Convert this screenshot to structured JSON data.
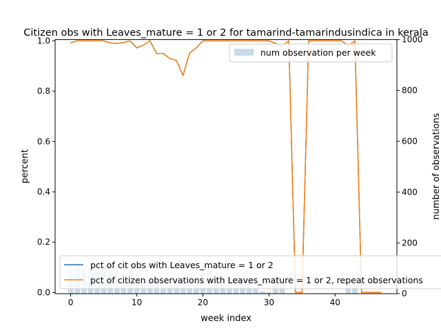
{
  "chart_data": {
    "type": "line",
    "title": "Citizen obs with Leaves_mature = 1 or 2 for tamarind-tamarindusindica in kerala",
    "xlabel": "week index",
    "ylabel": "percent",
    "ylabel_right": "number of observations",
    "xlim": [
      -2.35,
      49.35
    ],
    "ylim": [
      -0.005,
      1.005
    ],
    "ylim_right": [
      0,
      1000
    ],
    "x_ticks": [
      0,
      10,
      20,
      30,
      40
    ],
    "x_tick_labels": [
      "0",
      "10",
      "20",
      "30",
      "40"
    ],
    "y_ticks": [
      0.0,
      0.2,
      0.4,
      0.6,
      0.8,
      1.0
    ],
    "y_tick_labels": [
      "0.0",
      "0.2",
      "0.4",
      "0.6",
      "0.8",
      "1.0"
    ],
    "y_right_ticks": [
      0,
      200,
      400,
      600,
      800,
      1000
    ],
    "y_right_tick_labels": [
      "0",
      "200",
      "400",
      "600",
      "800",
      "1000"
    ],
    "grid": false,
    "x": [
      0,
      1,
      2,
      3,
      4,
      5,
      6,
      7,
      8,
      9,
      10,
      11,
      12,
      13,
      14,
      15,
      16,
      17,
      18,
      19,
      20,
      21,
      22,
      23,
      24,
      25,
      26,
      27,
      28,
      29,
      30,
      31,
      32,
      33,
      34,
      35,
      36,
      37,
      38,
      39,
      40,
      41,
      42,
      43,
      44,
      45,
      46,
      47
    ],
    "series": [
      {
        "name": "pct of cit obs with Leaves_mature = 1 or 2",
        "color": "#1f77b4",
        "axis": "left",
        "values": [
          0.992,
          1.0,
          1.0,
          1.0,
          1.0,
          1.0,
          0.992,
          0.99,
          0.993,
          1.0,
          0.972,
          0.983,
          1.0,
          0.95,
          0.95,
          0.93,
          0.922,
          0.862,
          0.952,
          0.972,
          1.0,
          1.0,
          1.0,
          1.0,
          1.0,
          1.0,
          1.0,
          1.0,
          1.0,
          1.0,
          1.0,
          0.99,
          0.98,
          1.0,
          0.0,
          0.0,
          1.0,
          1.0,
          1.0,
          1.0,
          1.0,
          1.0,
          0.98,
          1.0,
          0.0,
          0.0,
          0.0,
          0.0
        ]
      },
      {
        "name": "pct of citizen observations with Leaves_mature = 1 or 2, repeat observations",
        "color": "#ff7f0e",
        "axis": "left",
        "values": [
          0.992,
          1.0,
          1.0,
          1.0,
          1.0,
          1.0,
          0.992,
          0.99,
          0.993,
          1.0,
          0.972,
          0.983,
          1.0,
          0.95,
          0.95,
          0.93,
          0.922,
          0.862,
          0.952,
          0.972,
          1.0,
          1.0,
          1.0,
          1.0,
          1.0,
          1.0,
          1.0,
          1.0,
          1.0,
          1.0,
          1.0,
          0.99,
          0.98,
          1.0,
          0.0,
          0.0,
          1.0,
          1.0,
          1.0,
          1.0,
          1.0,
          1.0,
          0.98,
          1.0,
          0.0,
          0.0,
          0.0,
          0.0
        ]
      },
      {
        "name": "num observation per week",
        "type": "bar",
        "color": "#c6dbeb",
        "axis": "right",
        "values": [
          120,
          120,
          100,
          95,
          100,
          105,
          110,
          90,
          120,
          120,
          70,
          55,
          65,
          50,
          55,
          40,
          55,
          55,
          35,
          50,
          125,
          90,
          75,
          70,
          75,
          75,
          70,
          55,
          25,
          10,
          5,
          75,
          40,
          0,
          0,
          0,
          0,
          0,
          0,
          0,
          0,
          0,
          45,
          30,
          0,
          0,
          0,
          0
        ]
      }
    ],
    "legend_upper": "upper-right",
    "legend_lower": "lower-left"
  }
}
